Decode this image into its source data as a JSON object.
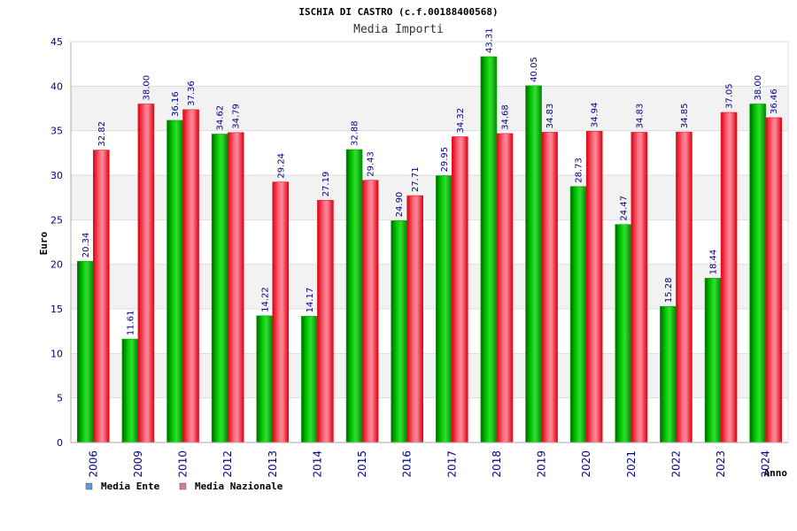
{
  "chart_data": {
    "type": "bar",
    "title": "ISCHIA DI CASTRO (c.f.00188400568)",
    "subtitle": "Media Importi",
    "xlabel": "Anno",
    "ylabel": "Euro",
    "ylim": [
      0,
      45
    ],
    "yticks": [
      0,
      5,
      10,
      15,
      20,
      25,
      30,
      35,
      40,
      45
    ],
    "categories": [
      "2006",
      "2009",
      "2010",
      "2012",
      "2013",
      "2014",
      "2015",
      "2016",
      "2017",
      "2018",
      "2019",
      "2020",
      "2021",
      "2022",
      "2023",
      "2024"
    ],
    "value_labels": {
      "ente": [
        "20.34",
        "11.61",
        "36.16",
        "34.62",
        "14.22",
        "14.17",
        "32.88",
        "24.90",
        "29.95",
        "43.31",
        "40.05",
        "28.73",
        "24.47",
        "15.28",
        "18.44",
        "38.00"
      ],
      "nazionale": [
        "32.82",
        "38.00",
        "37.36",
        "34.79",
        "29.24",
        "27.19",
        "29.43",
        "27.71",
        "34.32",
        "34.68",
        "34.83",
        "34.94",
        "34.83",
        "34.85",
        "37.05",
        "36.46"
      ]
    },
    "series": [
      {
        "name": "Media Ente",
        "color": "#00aa00",
        "legend_color": "#5b9bd5",
        "values": [
          20.34,
          11.61,
          36.16,
          34.62,
          14.22,
          14.17,
          32.88,
          24.9,
          29.95,
          43.31,
          40.05,
          28.73,
          24.47,
          15.28,
          18.44,
          38.0
        ]
      },
      {
        "name": "Media Nazionale",
        "color": "#ee1122",
        "legend_color": "#d97aa0",
        "values": [
          32.82,
          38.0,
          37.36,
          34.79,
          29.24,
          27.19,
          29.43,
          27.71,
          34.32,
          34.68,
          34.83,
          34.94,
          34.83,
          34.85,
          37.05,
          36.46
        ]
      }
    ],
    "grid": true,
    "legend_position": "bottom-left"
  }
}
